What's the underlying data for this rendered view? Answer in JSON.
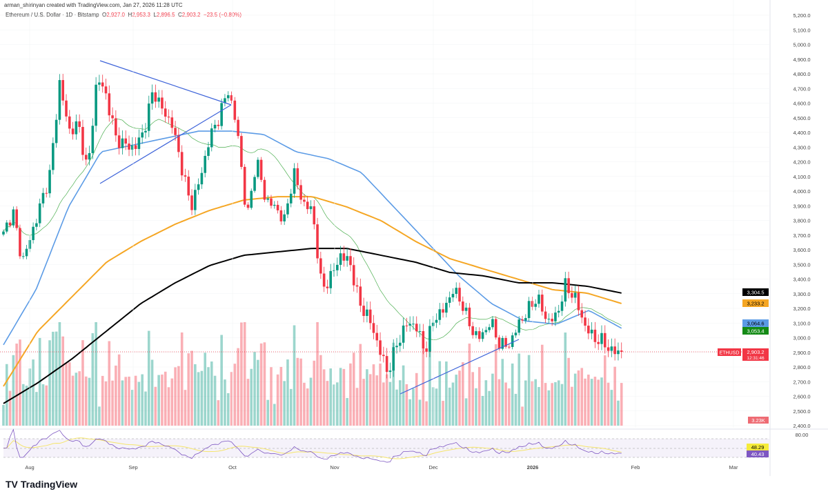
{
  "header": {
    "credit": "arman_shirinyan created with TradingView.com, Jan 27, 2026 11:28 UTC"
  },
  "legend": {
    "symbol": "Ethereum / U.S. Dollar · 1D · Bitstamp",
    "o_label": "O",
    "o": "2,927.0",
    "h_label": "H",
    "h": "2,953.3",
    "l_label": "L",
    "l": "2,896.5",
    "c_label": "C",
    "c": "2,903.2",
    "change": "−23.5 (−0.80%)"
  },
  "price_badges": {
    "ma200": "3,304.5",
    "ma100": "3,233.2",
    "ma50": "3,064.6",
    "ma20": "3,053.4",
    "symbol": "ETHUSD",
    "last": "2,903.2",
    "countdown": "12:31:46",
    "volume": "3.23K",
    "rsi_ma": "48.29",
    "rsi": "40.43"
  },
  "colors": {
    "up": "#089981",
    "down": "#f23645",
    "ma20": "#4caf50",
    "ma50": "#5b9be6",
    "ma100": "#f5a623",
    "ma200": "#000000",
    "rsi": "#7e57c2",
    "rsi_ma": "#f5e56b"
  },
  "logo": "TradingView",
  "chart_data": {
    "type": "candlestick",
    "period": "1D",
    "date_range": [
      "2025-07-24",
      "2026-01-27"
    ],
    "price_ticks": [
      "2,400.0",
      "2,500.0",
      "2,600.0",
      "2,700.0",
      "2,800.0",
      "2,900.0",
      "3,000.0",
      "3,100.0",
      "3,200.0",
      "3,300.0",
      "3,400.0",
      "3,500.0",
      "3,600.0",
      "3,700.0",
      "3,800.0",
      "3,900.0",
      "4,000.0",
      "4,100.0",
      "4,200.0",
      "4,300.0",
      "4,400.0",
      "4,500.0",
      "4,600.0",
      "4,700.0",
      "4,800.0",
      "4,900.0",
      "5,000.0",
      "5,100.0",
      "5,200.0"
    ],
    "ylim": [
      2400,
      5200
    ],
    "time_ticks": [
      "Aug",
      "Sep",
      "Oct",
      "Nov",
      "Dec",
      "2026",
      "Feb",
      "Mar"
    ],
    "rsi_ticks": [
      "80.00"
    ],
    "close_path": [
      3704,
      3868,
      3515,
      3704,
      3915,
      4127,
      4739,
      4409,
      4456,
      4127,
      4786,
      4645,
      4362,
      4315,
      4292,
      4409,
      4692,
      4550,
      4456,
      4174,
      3892,
      4080,
      4362,
      4503,
      4692,
      4409,
      3798,
      4221,
      3939,
      3892,
      3798,
      4127,
      3915,
      3868,
      3327,
      3421,
      3562,
      3515,
      3233,
      3139,
      2951,
      2762,
      2951,
      3092,
      3092,
      2904,
      3139,
      3186,
      3327,
      3233,
      3045,
      2998,
      3115,
      2951,
      2951,
      3092,
      3186,
      3280,
      3115,
      3139,
      3351,
      3280,
      3092,
      2998,
      2974,
      2904,
      2903.2
    ],
    "ma50_path": [
      2951,
      3327,
      3892,
      4268,
      4315,
      4362,
      4409,
      4409,
      4386,
      4268,
      4221,
      4127,
      3892,
      3657,
      3421,
      3233,
      3115,
      3092,
      3186,
      3064.6
    ],
    "ma100_path": [
      2668,
      3045,
      3280,
      3515,
      3657,
      3774,
      3868,
      3939,
      3962,
      3962,
      3892,
      3798,
      3657,
      3539,
      3468,
      3398,
      3327,
      3304,
      3233.2
    ],
    "ma200_path": [
      2551,
      2692,
      2856,
      3045,
      3233,
      3374,
      3492,
      3562,
      3586,
      3609,
      3609,
      3562,
      3515,
      3445,
      3421,
      3374,
      3374,
      3351,
      3304.5
    ]
  }
}
